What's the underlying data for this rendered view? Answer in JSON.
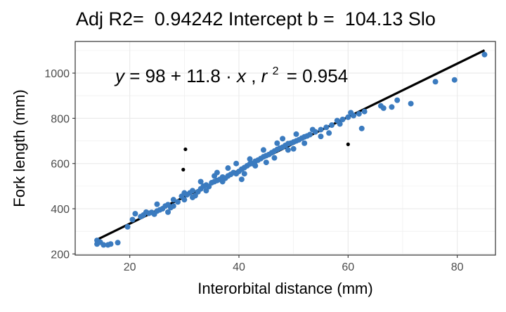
{
  "chart_data": {
    "type": "scatter",
    "title": "Adj R2=  0.94242 Intercept b =  104.13 Slo",
    "xlabel": "Interorbital distance (mm)",
    "ylabel": "Fork length (mm)",
    "xlim": [
      10,
      87
    ],
    "ylim": [
      195,
      1140
    ],
    "x_ticks": [
      20,
      40,
      60,
      80
    ],
    "y_ticks": [
      200,
      400,
      600,
      800,
      1000
    ],
    "grid": true,
    "annotation": {
      "y_symbol": "y",
      "rhs": "= 98 + 11.8 · ",
      "x_symbol": "x",
      "sep": ",  ",
      "r_symbol": "r",
      "r_exp": "2",
      "r_value": "= 0.954"
    },
    "fit_line": {
      "intercept": 98,
      "slope": 11.8,
      "x_range": [
        14,
        85
      ],
      "color": "#000000"
    },
    "colors": {
      "points": "#3b7bbf",
      "outliers": "#000000",
      "grid": "#ebebeb",
      "border": "#333333"
    },
    "outliers": [
      {
        "x": 30.2,
        "y": 663
      },
      {
        "x": 29.8,
        "y": 573
      },
      {
        "x": 60.0,
        "y": 685
      }
    ],
    "points": [
      {
        "x": 14,
        "y": 260
      },
      {
        "x": 14,
        "y": 244
      },
      {
        "x": 14.6,
        "y": 252
      },
      {
        "x": 15.2,
        "y": 240
      },
      {
        "x": 16.0,
        "y": 240
      },
      {
        "x": 16.5,
        "y": 244
      },
      {
        "x": 17.8,
        "y": 250
      },
      {
        "x": 19.6,
        "y": 320
      },
      {
        "x": 20.5,
        "y": 352
      },
      {
        "x": 21.0,
        "y": 378
      },
      {
        "x": 22.0,
        "y": 365
      },
      {
        "x": 22.5,
        "y": 372
      },
      {
        "x": 23.0,
        "y": 385
      },
      {
        "x": 23.5,
        "y": 380
      },
      {
        "x": 24.0,
        "y": 384
      },
      {
        "x": 24.5,
        "y": 376
      },
      {
        "x": 25.0,
        "y": 390
      },
      {
        "x": 25.5,
        "y": 395
      },
      {
        "x": 26.0,
        "y": 400
      },
      {
        "x": 26.5,
        "y": 412
      },
      {
        "x": 27.0,
        "y": 418
      },
      {
        "x": 27.5,
        "y": 405
      },
      {
        "x": 28.0,
        "y": 412
      },
      {
        "x": 28.8,
        "y": 430
      },
      {
        "x": 29.5,
        "y": 455
      },
      {
        "x": 30.0,
        "y": 440
      },
      {
        "x": 30.5,
        "y": 462
      },
      {
        "x": 31.0,
        "y": 470
      },
      {
        "x": 31.5,
        "y": 480
      },
      {
        "x": 32.0,
        "y": 458
      },
      {
        "x": 32.5,
        "y": 475
      },
      {
        "x": 33.0,
        "y": 488
      },
      {
        "x": 33.5,
        "y": 500
      },
      {
        "x": 34.0,
        "y": 505
      },
      {
        "x": 34.5,
        "y": 498
      },
      {
        "x": 35.0,
        "y": 515
      },
      {
        "x": 35.5,
        "y": 520
      },
      {
        "x": 36.0,
        "y": 525
      },
      {
        "x": 36.5,
        "y": 530
      },
      {
        "x": 37.0,
        "y": 540
      },
      {
        "x": 37.5,
        "y": 535
      },
      {
        "x": 38.0,
        "y": 545
      },
      {
        "x": 38.5,
        "y": 552
      },
      {
        "x": 39.0,
        "y": 560
      },
      {
        "x": 39.5,
        "y": 555
      },
      {
        "x": 40.0,
        "y": 565
      },
      {
        "x": 40.5,
        "y": 575
      },
      {
        "x": 41.0,
        "y": 582
      },
      {
        "x": 41.5,
        "y": 590
      },
      {
        "x": 42.0,
        "y": 598
      },
      {
        "x": 42.5,
        "y": 600
      },
      {
        "x": 43.0,
        "y": 610
      },
      {
        "x": 43.5,
        "y": 615
      },
      {
        "x": 44.0,
        "y": 622
      },
      {
        "x": 44.5,
        "y": 630
      },
      {
        "x": 45.0,
        "y": 635
      },
      {
        "x": 45.5,
        "y": 640
      },
      {
        "x": 46.0,
        "y": 648
      },
      {
        "x": 46.5,
        "y": 655
      },
      {
        "x": 47.0,
        "y": 662
      },
      {
        "x": 47.5,
        "y": 668
      },
      {
        "x": 48.0,
        "y": 672
      },
      {
        "x": 48.5,
        "y": 680
      },
      {
        "x": 49.0,
        "y": 688
      },
      {
        "x": 49.5,
        "y": 690
      },
      {
        "x": 50.0,
        "y": 695
      },
      {
        "x": 50.5,
        "y": 700
      },
      {
        "x": 51.0,
        "y": 705
      },
      {
        "x": 51.5,
        "y": 712
      },
      {
        "x": 52.0,
        "y": 718
      },
      {
        "x": 52.5,
        "y": 722
      },
      {
        "x": 53.0,
        "y": 728
      },
      {
        "x": 54.0,
        "y": 740
      },
      {
        "x": 55.0,
        "y": 750
      },
      {
        "x": 56.0,
        "y": 760
      },
      {
        "x": 57.0,
        "y": 770
      },
      {
        "x": 58.0,
        "y": 790
      },
      {
        "x": 59.0,
        "y": 795
      },
      {
        "x": 60.0,
        "y": 805
      },
      {
        "x": 61.0,
        "y": 812
      },
      {
        "x": 62.0,
        "y": 820
      },
      {
        "x": 62.5,
        "y": 755
      },
      {
        "x": 63.0,
        "y": 830
      },
      {
        "x": 66.0,
        "y": 855
      },
      {
        "x": 66.5,
        "y": 845
      },
      {
        "x": 68.0,
        "y": 850
      },
      {
        "x": 69.0,
        "y": 880
      },
      {
        "x": 71.5,
        "y": 865
      },
      {
        "x": 76.0,
        "y": 962
      },
      {
        "x": 79.5,
        "y": 970
      },
      {
        "x": 85.0,
        "y": 1082
      },
      {
        "x": 28.0,
        "y": 440
      },
      {
        "x": 30.0,
        "y": 470
      },
      {
        "x": 33.0,
        "y": 520
      },
      {
        "x": 35.5,
        "y": 545
      },
      {
        "x": 37.0,
        "y": 520
      },
      {
        "x": 38.0,
        "y": 580
      },
      {
        "x": 39.5,
        "y": 600
      },
      {
        "x": 41.0,
        "y": 555
      },
      {
        "x": 43.0,
        "y": 590
      },
      {
        "x": 44.5,
        "y": 660
      },
      {
        "x": 46.5,
        "y": 625
      },
      {
        "x": 48.0,
        "y": 710
      },
      {
        "x": 50.0,
        "y": 665
      },
      {
        "x": 52.0,
        "y": 690
      },
      {
        "x": 55.0,
        "y": 720
      },
      {
        "x": 56.5,
        "y": 735
      },
      {
        "x": 25.0,
        "y": 420
      },
      {
        "x": 27.0,
        "y": 385
      },
      {
        "x": 31.5,
        "y": 450
      },
      {
        "x": 36.0,
        "y": 560
      },
      {
        "x": 42.0,
        "y": 620
      },
      {
        "x": 45.0,
        "y": 605
      },
      {
        "x": 47.0,
        "y": 690
      },
      {
        "x": 49.0,
        "y": 660
      },
      {
        "x": 53.5,
        "y": 750
      },
      {
        "x": 40.5,
        "y": 530
      },
      {
        "x": 34.0,
        "y": 480
      },
      {
        "x": 50.5,
        "y": 730
      },
      {
        "x": 58.5,
        "y": 775
      },
      {
        "x": 60.5,
        "y": 825
      }
    ]
  }
}
